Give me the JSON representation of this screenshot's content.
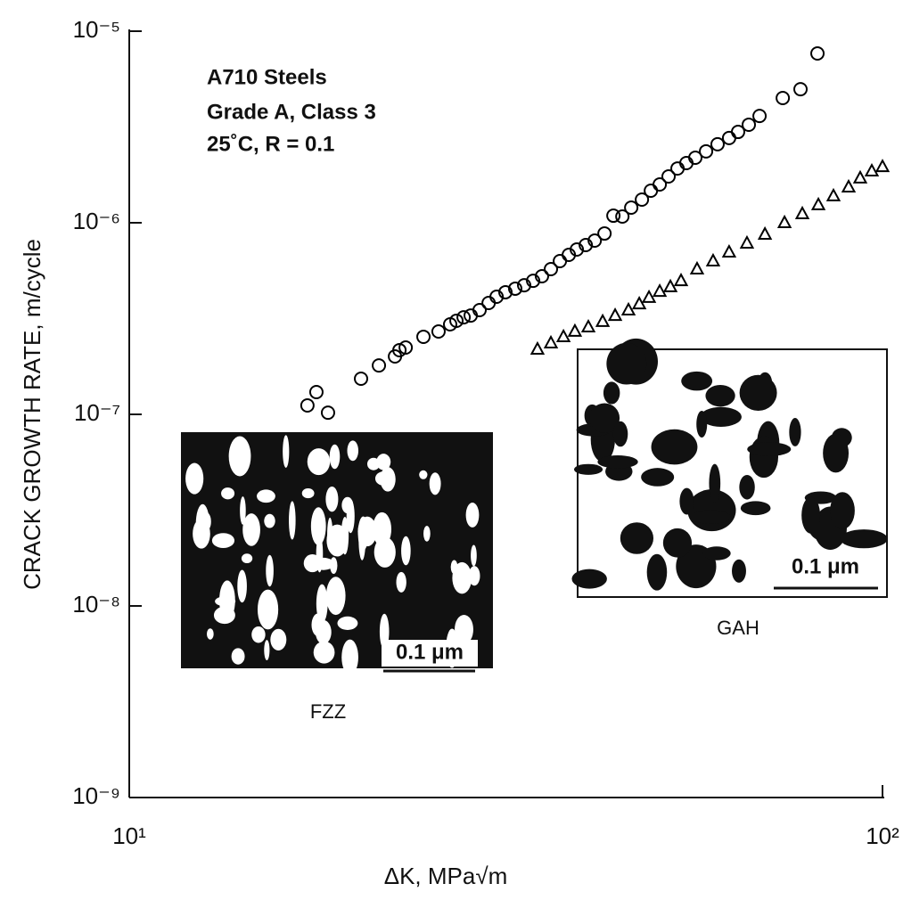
{
  "chart_data": {
    "type": "scatter",
    "x_label": "ΔK, MPa√m",
    "y_label": "CRACK GROWTH RATE, m/cycle",
    "annotations": [
      "A710 Steels",
      "Grade A, Class 3",
      "25˚C, R = 0.1"
    ],
    "inset_labels": [
      "FZZ",
      "GAH"
    ],
    "scale_bar_labels": [
      "0.1 μm",
      "0.1 μm"
    ],
    "xscale": "log",
    "yscale": "log",
    "xlim": [
      10,
      100
    ],
    "ylim": [
      1e-09,
      1e-05
    ],
    "xticks": [
      {
        "value": 10,
        "label": "10¹"
      },
      {
        "value": 100,
        "label": "10²"
      }
    ],
    "yticks": [
      {
        "value": 1e-09,
        "label": "10⁻⁹"
      },
      {
        "value": 1e-08,
        "label": "10⁻⁸"
      },
      {
        "value": 1e-07,
        "label": "10⁻⁷"
      },
      {
        "value": 1e-06,
        "label": "10⁻⁶"
      },
      {
        "value": 1e-05,
        "label": "10⁻⁵"
      }
    ],
    "series": [
      {
        "color": "#000000",
        "marker": "circle",
        "x": [
          17.24,
          17.72,
          18.36,
          20.31,
          21.45,
          22.53,
          22.84,
          23.28,
          24.58,
          25.74,
          26.67,
          27.19,
          27.79,
          28.4,
          29.18,
          30.0,
          30.74,
          31.58,
          32.54,
          33.44,
          34.37,
          35.31,
          36.29,
          37.3,
          38.33,
          39.28,
          40.37,
          41.49,
          42.75,
          43.93,
          45.15,
          46.39,
          47.93,
          49.26,
          50.61,
          52.0,
          53.44,
          54.91,
          56.43,
          58.31,
          60.4,
          62.57,
          64.31,
          66.45,
          68.67,
          73.72,
          77.83,
          81.97
        ],
        "values": [
          1.113e-07,
          1.307e-07,
          1.02e-07,
          1.535e-07,
          1.8e-07,
          2.006e-07,
          2.163e-07,
          2.233e-07,
          2.54e-07,
          2.708e-07,
          2.95e-07,
          3.08e-07,
          3.21e-07,
          3.28e-07,
          3.5e-07,
          3.815e-07,
          4.11e-07,
          4.34e-07,
          4.53e-07,
          4.72e-07,
          4.98e-07,
          5.26e-07,
          5.73e-07,
          6.31e-07,
          6.8e-07,
          7.25e-07,
          7.65e-07,
          8.07e-07,
          8.79e-07,
          1.089e-06,
          1.078e-06,
          1.2e-06,
          1.321e-06,
          1.47e-06,
          1.585e-06,
          1.745e-06,
          1.92e-06,
          2.05e-06,
          2.185e-06,
          2.36e-06,
          2.57e-06,
          2.77e-06,
          2.98e-06,
          3.25e-06,
          3.61e-06,
          4.48e-06,
          4.98e-06,
          7.65e-06
        ]
      },
      {
        "color": "#000000",
        "marker": "triangle",
        "x": [
          34.83,
          36.29,
          37.71,
          39.05,
          40.69,
          42.51,
          44.16,
          46.0,
          47.54,
          48.98,
          50.61,
          52.29,
          54.02,
          56.73,
          59.58,
          62.57,
          66.08,
          69.81,
          74.12,
          78.26,
          82.2,
          86.08,
          90.16,
          93.41,
          96.78,
          100
        ],
        "values": [
          2.185e-07,
          2.355e-07,
          2.54e-07,
          2.71e-07,
          2.855e-07,
          3.05e-07,
          3.28e-07,
          3.5e-07,
          3.77e-07,
          4.07e-07,
          4.38e-07,
          4.63e-07,
          4.98e-07,
          5.73e-07,
          6.31e-07,
          7.02e-07,
          7.82e-07,
          8.7e-07,
          1e-06,
          1.113e-06,
          1.24e-06,
          1.38e-06,
          1.535e-06,
          1.71e-06,
          1.86e-06,
          1.96e-06
        ]
      }
    ]
  }
}
